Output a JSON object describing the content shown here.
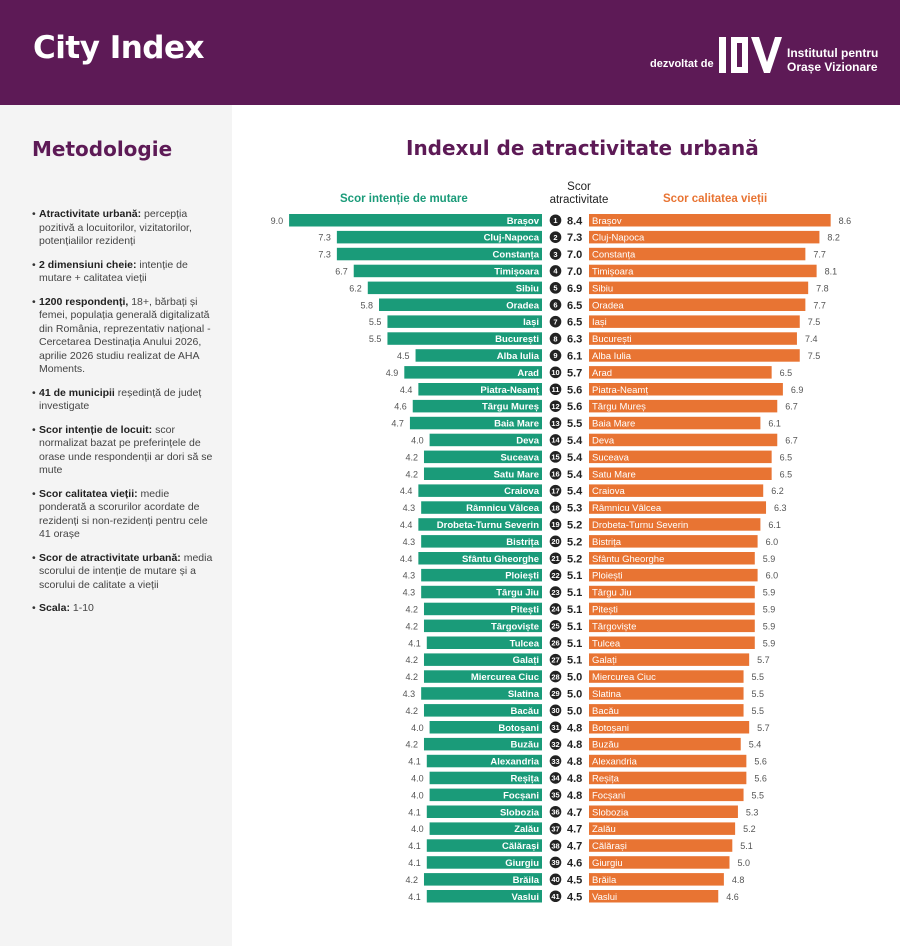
{
  "header": {
    "title": "City Index",
    "developed_by": "dezvoltat de",
    "institute_line1": "Institutul pentru",
    "institute_line2": "Orașe Vizionare",
    "logo_text": "IOV"
  },
  "sidebar": {
    "title": "Metodologie",
    "items": [
      {
        "bold": "Atractivitate urbană:",
        "text": " percepția pozitivă a locuitorilor, vizitatorilor, potențialilor rezidenți"
      },
      {
        "bold": "2 dimensiuni cheie:",
        "text": " intenție de mutare + calitatea vieții"
      },
      {
        "bold": "1200 respondenți,",
        "text": " 18+, bărbați și femei, populația generală digitalizată din România, reprezentativ național - Cercetarea Destinația Anului 2026, aprilie 2026 studiu realizat de AHA Moments."
      },
      {
        "bold": "41 de municipii",
        "text": " reședință de județ investigate"
      },
      {
        "bold": "Scor intenție de locuit:",
        "text": " scor normalizat bazat pe preferințele de orase unde respondenții ar dori să se mute"
      },
      {
        "bold": "Scor calitatea vieții:",
        "text": " medie ponderată a scorurilor acordate de rezidenți si non-rezidenți pentru cele 41 orașe"
      },
      {
        "bold": "Scor de atractivitate urbană:",
        "text": " media scorului de intenție de mutare și a scorului de calitate a vieții"
      },
      {
        "bold": "Scala:",
        "text": " 1-10"
      }
    ]
  },
  "chart_data": {
    "type": "bar",
    "title": "Indexul de atractivitate urbană",
    "left_label": "Scor intenție de mutare",
    "middle_label_1": "Scor",
    "middle_label_2": "atractivitate",
    "right_label": "Scor calitatea vieții",
    "colors": {
      "left": "#1a9b79",
      "right": "#e87433",
      "rank_circle": "#222222"
    },
    "xlim": [
      0,
      10
    ],
    "categories": [
      "Brașov",
      "Cluj-Napoca",
      "Constanța",
      "Timișoara",
      "Sibiu",
      "Oradea",
      "Iași",
      "București",
      "Alba Iulia",
      "Arad",
      "Piatra-Neamț",
      "Târgu Mureș",
      "Baia Mare",
      "Deva",
      "Suceava",
      "Satu Mare",
      "Craiova",
      "Râmnicu Vâlcea",
      "Drobeta-Turnu Severin",
      "Bistrița",
      "Sfântu Gheorghe",
      "Ploiești",
      "Târgu Jiu",
      "Pitești",
      "Târgoviște",
      "Tulcea",
      "Galați",
      "Miercurea Ciuc",
      "Slatina",
      "Bacău",
      "Botoșani",
      "Buzău",
      "Alexandria",
      "Reșița",
      "Focșani",
      "Slobozia",
      "Zalău",
      "Călărași",
      "Giurgiu",
      "Brăila",
      "Vaslui"
    ],
    "ranks": [
      "1",
      "2",
      "3",
      "4",
      "5",
      "6",
      "7",
      "8",
      "9",
      "10",
      "11",
      "12",
      "13",
      "14",
      "15",
      "16",
      "17",
      "18",
      "19",
      "20",
      "21",
      "22",
      "23",
      "24",
      "25",
      "26",
      "27",
      "28",
      "29",
      "30",
      "31",
      "32",
      "33",
      "34",
      "35",
      "36",
      "37",
      "38",
      "39",
      "40",
      "41"
    ],
    "attractiveness": [
      "8.4",
      "7.3",
      "7.0",
      "7.0",
      "6.9",
      "6.5",
      "6.5",
      "6.3",
      "6.1",
      "5.7",
      "5.6",
      "5.6",
      "5.5",
      "5.4",
      "5.4",
      "5.4",
      "5.4",
      "5.3",
      "5.2",
      "5.2",
      "5.2",
      "5.1",
      "5.1",
      "5.1",
      "5.1",
      "5.1",
      "5.1",
      "5.0",
      "5.0",
      "5.0",
      "4.8",
      "4.8",
      "4.8",
      "4.8",
      "4.8",
      "4.7",
      "4.7",
      "4.7",
      "4.6",
      "4.5",
      "4.5"
    ],
    "series": [
      {
        "name": "Scor intenție de mutare",
        "values": [
          9.0,
          7.3,
          7.3,
          6.7,
          6.2,
          5.8,
          5.5,
          5.5,
          4.5,
          4.9,
          4.4,
          4.6,
          4.7,
          4.0,
          4.2,
          4.2,
          4.4,
          4.3,
          4.4,
          4.3,
          4.4,
          4.3,
          4.3,
          4.2,
          4.2,
          4.1,
          4.2,
          4.2,
          4.3,
          4.2,
          4.0,
          4.2,
          4.1,
          4.0,
          4.0,
          4.1,
          4.0,
          4.1,
          4.1,
          4.2,
          4.1
        ]
      },
      {
        "name": "Scor calitatea vieții",
        "values": [
          8.6,
          8.2,
          7.7,
          8.1,
          7.8,
          7.7,
          7.5,
          7.4,
          7.5,
          6.5,
          6.9,
          6.7,
          6.1,
          6.7,
          6.5,
          6.5,
          6.2,
          6.3,
          6.1,
          6.0,
          5.9,
          6.0,
          5.9,
          5.9,
          5.9,
          5.9,
          5.7,
          5.5,
          5.5,
          5.5,
          5.7,
          5.4,
          5.6,
          5.6,
          5.5,
          5.3,
          5.2,
          5.1,
          5.0,
          4.8,
          4.6
        ]
      }
    ]
  }
}
